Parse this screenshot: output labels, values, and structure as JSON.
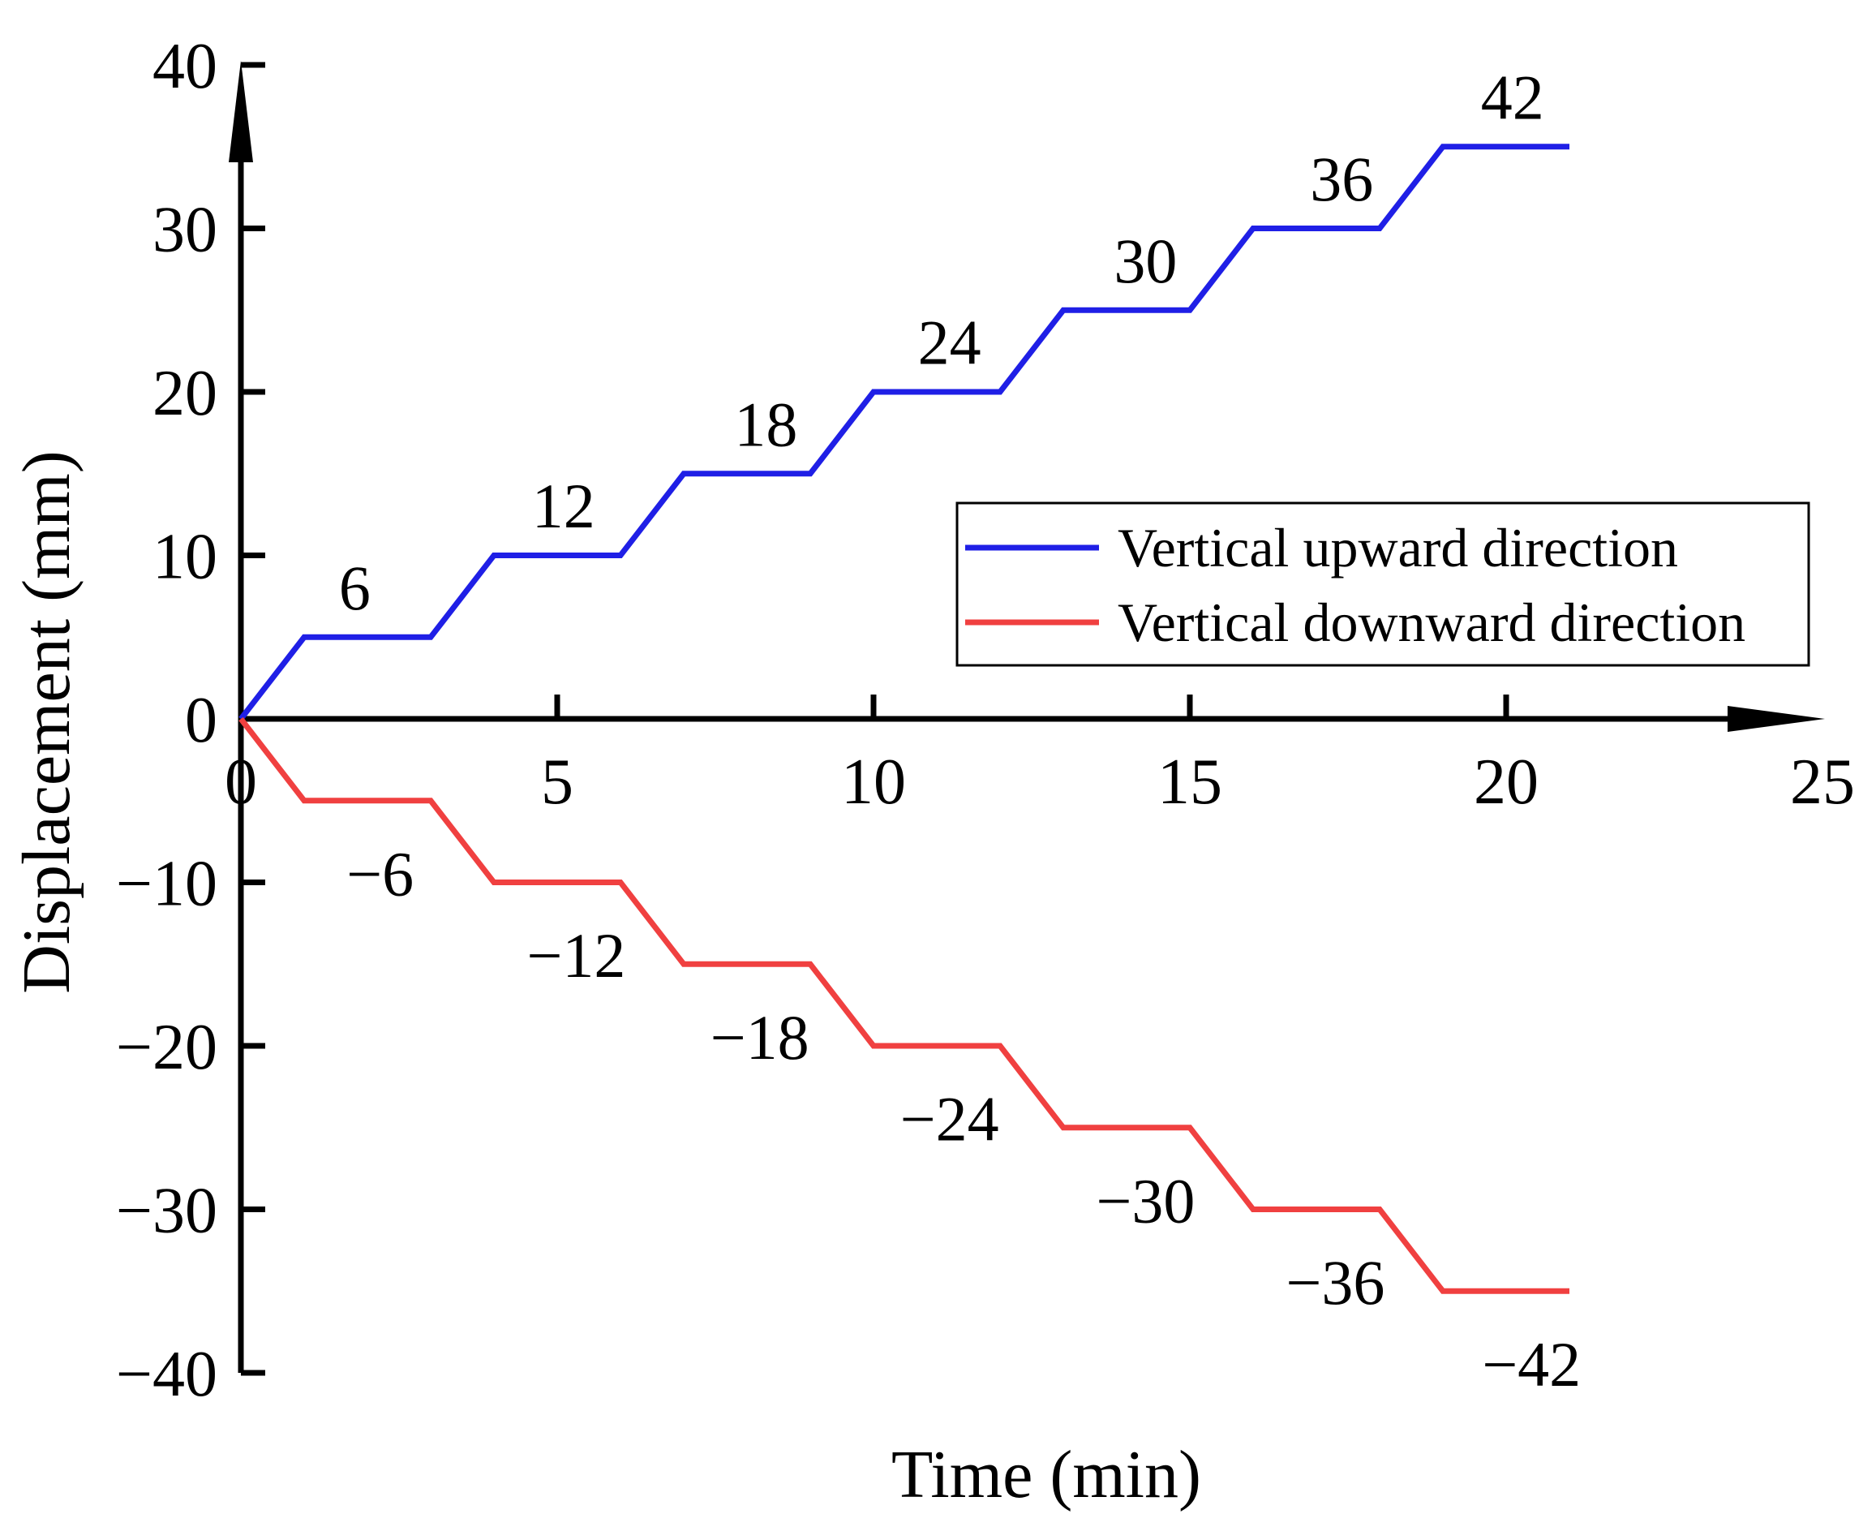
{
  "chart_data": {
    "type": "line",
    "title": "",
    "xlabel": "Time (min)",
    "ylabel": "Displacement (mm)",
    "xlim": [
      0,
      25
    ],
    "ylim": [
      -40,
      40
    ],
    "xticks": [
      0,
      5,
      10,
      15,
      20,
      25
    ],
    "xtick_labels": [
      "0",
      "5",
      "10",
      "15",
      "20",
      "25"
    ],
    "yticks": [
      40,
      30,
      20,
      10,
      0,
      -10,
      -20,
      -30,
      -40
    ],
    "ytick_labels": [
      "40",
      "30",
      "20",
      "10",
      "0",
      "−10",
      "−20",
      "−30",
      "−40"
    ],
    "grid": false,
    "legend_position": "right-middle",
    "series": [
      {
        "name": "Vertical upward direction",
        "color": "#1f1fe6",
        "x": [
          0,
          1,
          3,
          4,
          6,
          7,
          9,
          10,
          12,
          13,
          15,
          16,
          18,
          19,
          21
        ],
        "y": [
          0,
          5,
          5,
          10,
          10,
          15,
          15,
          20,
          20,
          25,
          25,
          30,
          30,
          35,
          35
        ]
      },
      {
        "name": "Vertical downward direction",
        "color": "#f04040",
        "x": [
          0,
          1,
          3,
          4,
          6,
          7,
          9,
          10,
          12,
          13,
          15,
          16,
          18,
          19,
          21
        ],
        "y": [
          0,
          -5,
          -5,
          -10,
          -10,
          -15,
          -15,
          -20,
          -20,
          -25,
          -25,
          -30,
          -30,
          -35,
          -35
        ]
      }
    ],
    "annotations": [
      {
        "text": "6",
        "x": 1.8,
        "y": 8.0
      },
      {
        "text": "12",
        "x": 5.1,
        "y": 13.0
      },
      {
        "text": "18",
        "x": 8.3,
        "y": 18.0
      },
      {
        "text": "24",
        "x": 11.2,
        "y": 23.0
      },
      {
        "text": "30",
        "x": 14.3,
        "y": 28.0
      },
      {
        "text": "36",
        "x": 17.4,
        "y": 33.0
      },
      {
        "text": "42",
        "x": 20.1,
        "y": 38.0
      },
      {
        "text": "−6",
        "x": 2.2,
        "y": -9.5
      },
      {
        "text": "−12",
        "x": 5.3,
        "y": -14.5
      },
      {
        "text": "−18",
        "x": 8.2,
        "y": -19.5
      },
      {
        "text": "−24",
        "x": 11.2,
        "y": -24.5
      },
      {
        "text": "−30",
        "x": 14.3,
        "y": -29.5
      },
      {
        "text": "−36",
        "x": 17.3,
        "y": -34.5
      },
      {
        "text": "−42",
        "x": 20.4,
        "y": -39.5
      }
    ]
  }
}
